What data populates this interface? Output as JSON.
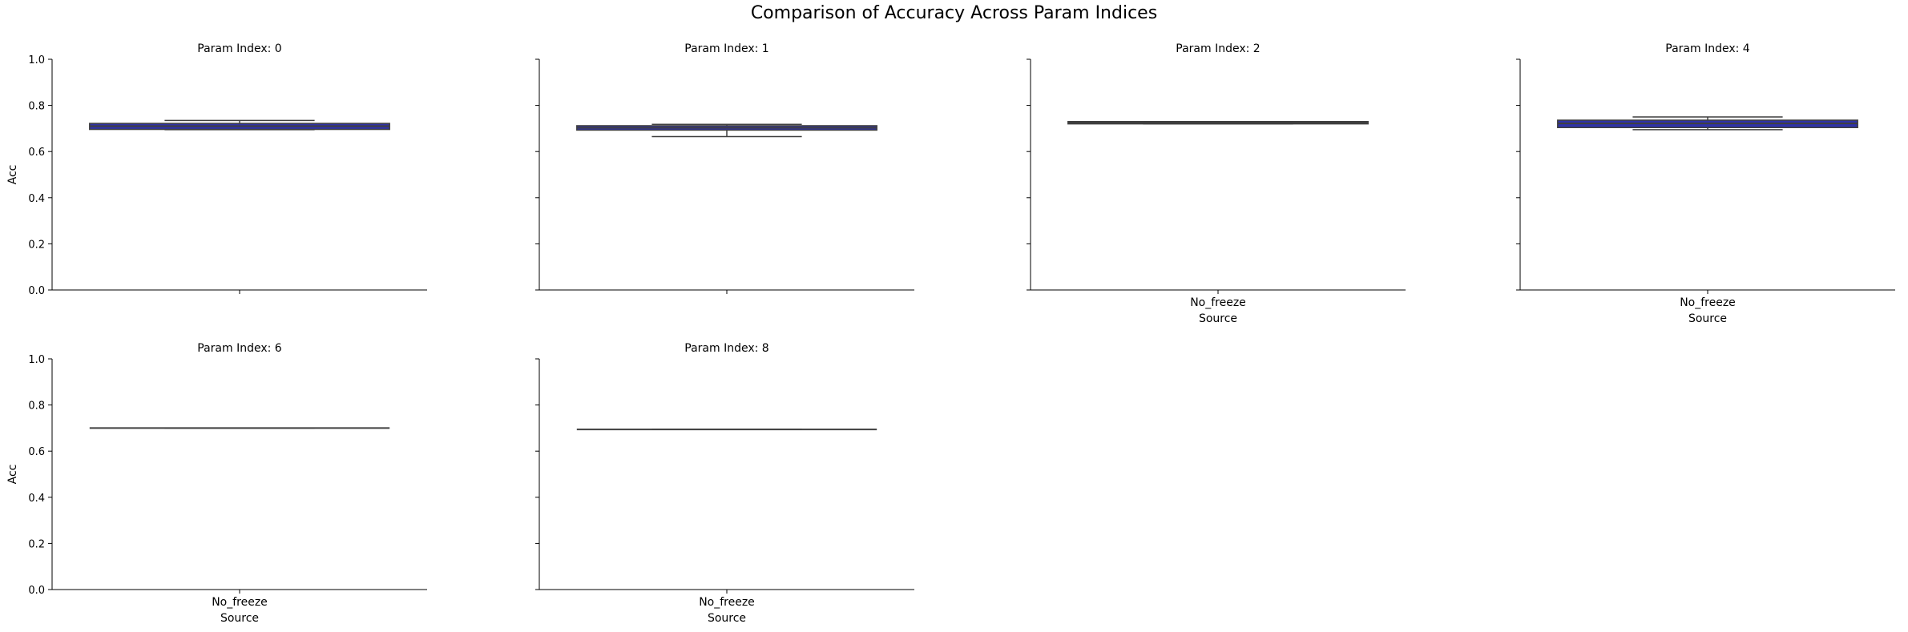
{
  "title": "Comparison of Accuracy Across Param Indices",
  "colors": {
    "box_fill": "#2f32a8",
    "line": "#3f3f3f",
    "axis": "#000000"
  },
  "chart_data": [
    {
      "type": "box",
      "title": "Param Index: 0",
      "ylabel": "Acc",
      "xlabel": "",
      "categories": [
        "No_freeze"
      ],
      "show_xtick_labels": false,
      "ylim": [
        0,
        1
      ],
      "yticks": [
        0.0,
        0.2,
        0.4,
        0.6,
        0.8,
        1.0
      ],
      "boxes": [
        {
          "category": "No_freeze",
          "whislo": 0.695,
          "q1": 0.696,
          "med": 0.71,
          "q3": 0.722,
          "whishi": 0.735
        }
      ]
    },
    {
      "type": "box",
      "title": "Param Index: 1",
      "ylabel": "",
      "xlabel": "",
      "categories": [
        "No_freeze"
      ],
      "show_xtick_labels": false,
      "ylim": [
        0,
        1
      ],
      "yticks": [
        0.0,
        0.2,
        0.4,
        0.6,
        0.8,
        1.0
      ],
      "boxes": [
        {
          "category": "No_freeze",
          "whislo": 0.665,
          "q1": 0.693,
          "med": 0.703,
          "q3": 0.712,
          "whishi": 0.718
        }
      ]
    },
    {
      "type": "box",
      "title": "Param Index: 2",
      "ylabel": "",
      "xlabel": "Source",
      "categories": [
        "No_freeze"
      ],
      "show_xtick_labels": true,
      "ylim": [
        0,
        1
      ],
      "yticks": [
        0.0,
        0.2,
        0.4,
        0.6,
        0.8,
        1.0
      ],
      "boxes": [
        {
          "category": "No_freeze",
          "whislo": 0.72,
          "q1": 0.72,
          "med": 0.725,
          "q3": 0.73,
          "whishi": 0.73
        }
      ]
    },
    {
      "type": "box",
      "title": "Param Index: 4",
      "ylabel": "",
      "xlabel": "Source",
      "categories": [
        "No_freeze"
      ],
      "show_xtick_labels": true,
      "ylim": [
        0,
        1
      ],
      "yticks": [
        0.0,
        0.2,
        0.4,
        0.6,
        0.8,
        1.0
      ],
      "boxes": [
        {
          "category": "No_freeze",
          "whislo": 0.695,
          "q1": 0.704,
          "med": 0.722,
          "q3": 0.736,
          "whishi": 0.75
        }
      ]
    },
    {
      "type": "box",
      "title": "Param Index: 6",
      "ylabel": "Acc",
      "xlabel": "Source",
      "categories": [
        "No_freeze"
      ],
      "show_xtick_labels": true,
      "ylim": [
        0,
        1
      ],
      "yticks": [
        0.0,
        0.2,
        0.4,
        0.6,
        0.8,
        1.0
      ],
      "boxes": [
        {
          "category": "No_freeze",
          "whislo": 0.7,
          "q1": 0.7,
          "med": 0.7,
          "q3": 0.7,
          "whishi": 0.7
        }
      ]
    },
    {
      "type": "box",
      "title": "Param Index: 8",
      "ylabel": "",
      "xlabel": "Source",
      "categories": [
        "No_freeze"
      ],
      "show_xtick_labels": true,
      "ylim": [
        0,
        1
      ],
      "yticks": [
        0.0,
        0.2,
        0.4,
        0.6,
        0.8,
        1.0
      ],
      "boxes": [
        {
          "category": "No_freeze",
          "whislo": 0.694,
          "q1": 0.694,
          "med": 0.694,
          "q3": 0.694,
          "whishi": 0.694
        }
      ]
    }
  ]
}
